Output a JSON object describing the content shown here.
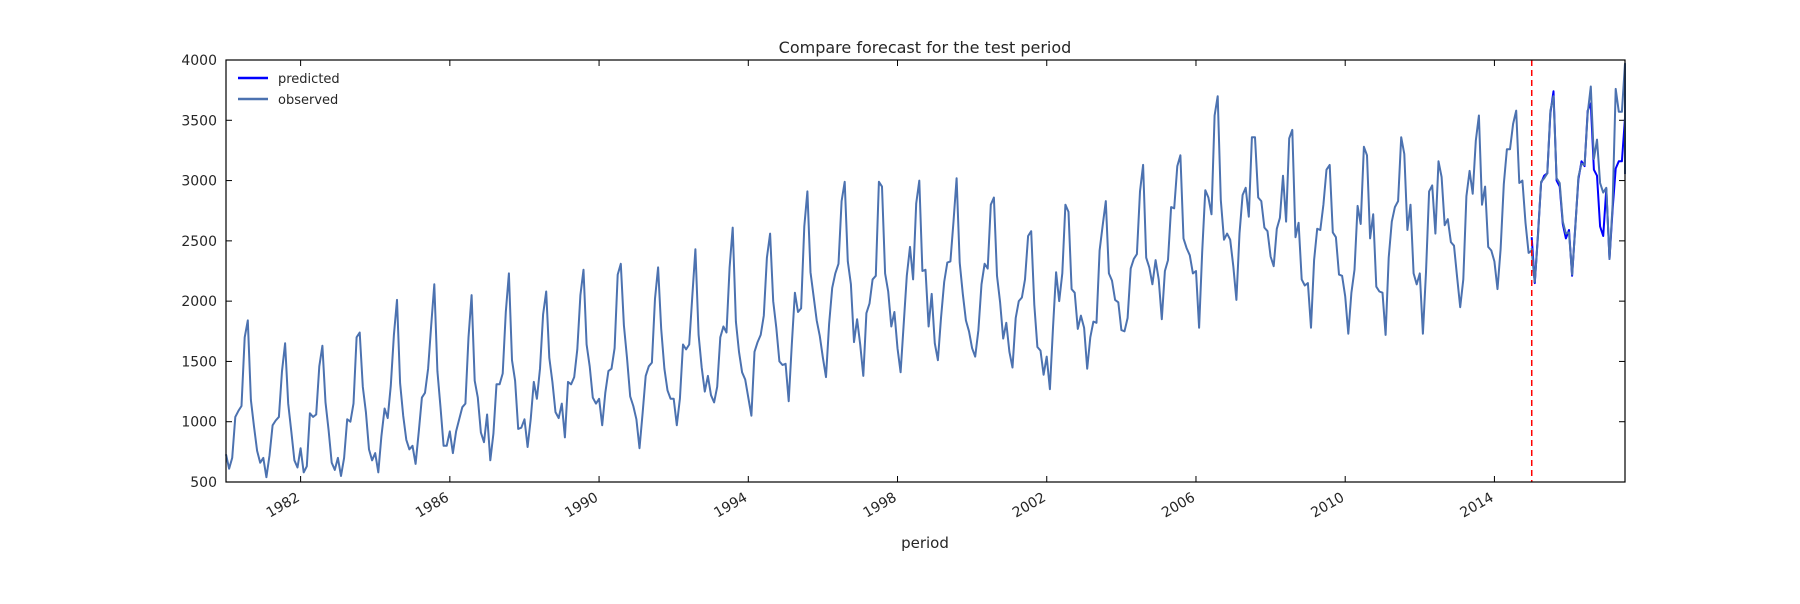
{
  "chart_data": {
    "type": "line",
    "title": "Compare forecast for the test period",
    "xlabel": "period",
    "ylabel": "",
    "xlim": [
      1980.0,
      2017.5
    ],
    "ylim": [
      500,
      4000
    ],
    "x_ticks": [
      "1982",
      "1986",
      "1990",
      "1994",
      "1998",
      "2002",
      "2006",
      "2010",
      "2014"
    ],
    "y_ticks": [
      "500",
      "1000",
      "1500",
      "2000",
      "2500",
      "3000",
      "3500",
      "4000"
    ],
    "vline_x": 2015.0,
    "legend": {
      "position": "upper-left"
    },
    "colors": {
      "observed": "#4c72b0",
      "predicted": "#0000ff",
      "vline": "#ff0000"
    },
    "series": [
      {
        "name": "predicted",
        "start": 2015.0,
        "step": 0.0833333,
        "values": [
          2530,
          2150,
          2560,
          2980,
          3040,
          3060,
          3560,
          3740,
          3000,
          2950,
          2640,
          2520,
          2590,
          2210,
          2620,
          3010,
          3160,
          3120,
          3580,
          3640,
          3090,
          3040,
          2620,
          2540,
          2930,
          2350,
          2760,
          3100,
          3160,
          3160,
          3520,
          3830,
          3060,
          3220
        ]
      },
      {
        "name": "observed",
        "start": 1980.0,
        "step": 0.0833333,
        "values": [
          730,
          610,
          700,
          1040,
          1090,
          1130,
          1700,
          1840,
          1180,
          960,
          760,
          660,
          700,
          540,
          720,
          970,
          1010,
          1040,
          1420,
          1650,
          1150,
          920,
          680,
          620,
          780,
          580,
          630,
          1070,
          1040,
          1060,
          1460,
          1630,
          1160,
          930,
          660,
          600,
          700,
          550,
          700,
          1020,
          1000,
          1150,
          1700,
          1740,
          1290,
          1080,
          770,
          680,
          740,
          580,
          880,
          1110,
          1030,
          1300,
          1720,
          2010,
          1320,
          1050,
          850,
          770,
          800,
          650,
          920,
          1200,
          1240,
          1440,
          1800,
          2140,
          1420,
          1120,
          800,
          800,
          920,
          740,
          920,
          1020,
          1120,
          1150,
          1700,
          2050,
          1340,
          1200,
          910,
          830,
          1060,
          680,
          900,
          1310,
          1310,
          1400,
          1910,
          2230,
          1510,
          1340,
          940,
          950,
          1020,
          790,
          1020,
          1330,
          1190,
          1440,
          1890,
          2080,
          1530,
          1330,
          1080,
          1030,
          1150,
          870,
          1330,
          1310,
          1370,
          1600,
          2050,
          2260,
          1640,
          1460,
          1200,
          1150,
          1190,
          970,
          1240,
          1420,
          1440,
          1610,
          2220,
          2310,
          1800,
          1530,
          1210,
          1130,
          1020,
          780,
          1070,
          1380,
          1460,
          1490,
          2020,
          2280,
          1770,
          1440,
          1260,
          1190,
          1190,
          970,
          1190,
          1640,
          1600,
          1640,
          2040,
          2430,
          1720,
          1450,
          1250,
          1380,
          1220,
          1160,
          1290,
          1700,
          1790,
          1740,
          2280,
          2610,
          1830,
          1580,
          1410,
          1350,
          1200,
          1050,
          1580,
          1660,
          1720,
          1880,
          2360,
          2560,
          2000,
          1780,
          1500,
          1470,
          1480,
          1170,
          1640,
          2070,
          1910,
          1940,
          2620,
          2910,
          2240,
          2040,
          1840,
          1710,
          1530,
          1370,
          1810,
          2110,
          2230,
          2310,
          2830,
          2990,
          2330,
          2140,
          1660,
          1850,
          1640,
          1380,
          1900,
          1980,
          2180,
          2210,
          2990,
          2950,
          2230,
          2080,
          1790,
          1910,
          1610,
          1410,
          1810,
          2210,
          2450,
          2180,
          2810,
          3000,
          2250,
          2260,
          1790,
          2060,
          1650,
          1510,
          1860,
          2160,
          2320,
          2330,
          2660,
          3020,
          2320,
          2060,
          1840,
          1750,
          1610,
          1540,
          1760,
          2140,
          2310,
          2270,
          2800,
          2860,
          2210,
          1990,
          1690,
          1820,
          1580,
          1450,
          1860,
          2000,
          2030,
          2180,
          2540,
          2580,
          1970,
          1620,
          1590,
          1390,
          1540,
          1270,
          1780,
          2240,
          2000,
          2230,
          2800,
          2740,
          2100,
          2070,
          1770,
          1880,
          1780,
          1440,
          1700,
          1830,
          1820,
          2420,
          2630,
          2830,
          2230,
          2170,
          2010,
          1990,
          1760,
          1750,
          1860,
          2270,
          2350,
          2390,
          2910,
          3130,
          2360,
          2280,
          2140,
          2340,
          2180,
          1850,
          2250,
          2340,
          2780,
          2770,
          3120,
          3210,
          2520,
          2440,
          2380,
          2230,
          2250,
          1780,
          2410,
          2920,
          2860,
          2720,
          3540,
          3700,
          2840,
          2510,
          2560,
          2510,
          2290,
          2010,
          2560,
          2880,
          2940,
          2700,
          3360,
          3360,
          2860,
          2830,
          2610,
          2580,
          2370,
          2290,
          2600,
          2690,
          3040,
          2660,
          3350,
          3420,
          2530,
          2650,
          2180,
          2130,
          2150,
          1780,
          2340,
          2600,
          2590,
          2800,
          3090,
          3130,
          2570,
          2530,
          2220,
          2210,
          2040,
          1730,
          2070,
          2260,
          2790,
          2640,
          3280,
          3210,
          2520,
          2720,
          2120,
          2080,
          2070,
          1720,
          2360,
          2660,
          2780,
          2830,
          3360,
          3220,
          2590,
          2800,
          2230,
          2140,
          2230,
          1730,
          2240,
          2910,
          2960,
          2560,
          3160,
          3030,
          2630,
          2680,
          2490,
          2460,
          2200,
          1950,
          2180,
          2870,
          3080,
          2890,
          3330,
          3540,
          2800,
          2950,
          2450,
          2420,
          2330,
          2100,
          2430,
          2970,
          3260,
          3260,
          3470,
          3580,
          2980,
          3000,
          2650,
          2400,
          2420,
          2150
        ]
      },
      {
        "name": "",
        "start": 2015.0,
        "step": 0.0833333,
        "values": [
          2440,
          2160,
          2540,
          2990,
          3020,
          3060,
          3580,
          3700,
          3020,
          2980,
          2660,
          2560,
          2570,
          2220,
          2610,
          3030,
          3140,
          3130,
          3560,
          3780,
          3180,
          3340,
          2980,
          2900,
          2940,
          2350,
          2800,
          3760,
          3570,
          3570,
          3970,
          3910,
          3060,
          3130
        ]
      }
    ]
  }
}
